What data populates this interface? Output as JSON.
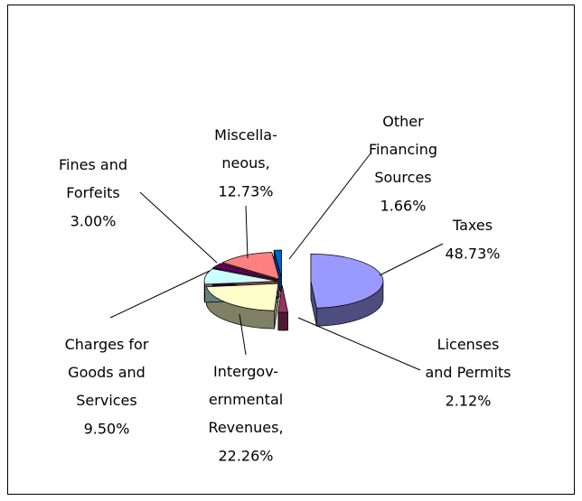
{
  "chart_data": {
    "type": "pie3d",
    "categories": [
      "Taxes",
      "Licenses\nand Permits",
      "Intergov-\nernmental\nRevenues,",
      "Charges for\nGoods and\nServices",
      "Fines and\nForfeits",
      "Miscella-\nneous,",
      "Other\nFinancing\nSources"
    ],
    "values": [
      48.73,
      2.12,
      22.26,
      9.5,
      3.0,
      12.73,
      1.66
    ],
    "value_labels": [
      "48.73%",
      "2.12%",
      "22.26%",
      "9.50%",
      "3.00%",
      "12.73%",
      "1.66%"
    ],
    "colors": [
      "#9999ff",
      "#993366",
      "#ffffcc",
      "#ccffff",
      "#660066",
      "#ff8080",
      "#0066cc"
    ]
  }
}
